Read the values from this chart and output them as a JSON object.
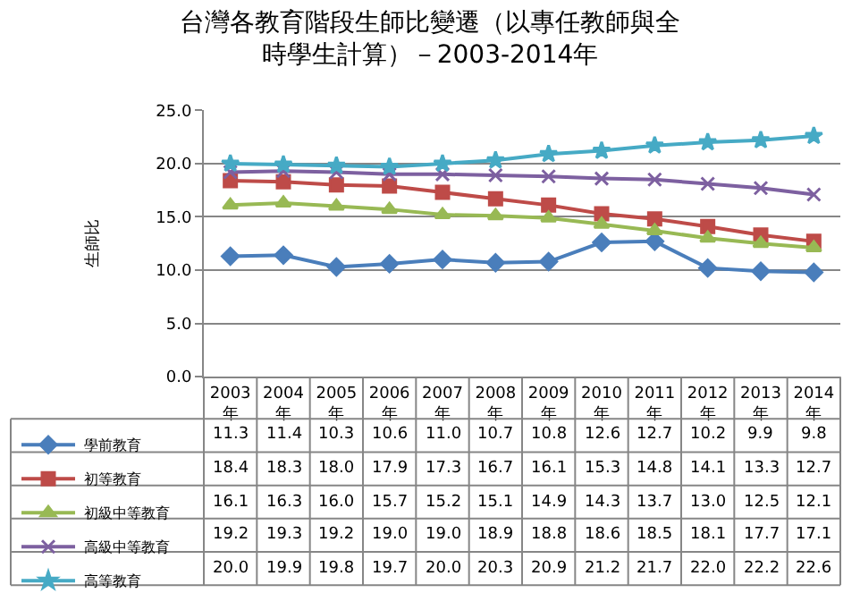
{
  "chart_data": {
    "type": "line",
    "title": "台灣各教育階段生師比變遷（以專任教師與全$_{}$時學生計算）－2003-2014年",
    "ylabel": "生師比",
    "categories": [
      "2003年",
      "2004年",
      "2005年",
      "2006年",
      "2007年",
      "2008年",
      "2009年",
      "2010年",
      "2011年",
      "2012年",
      "2013年",
      "2014年"
    ],
    "series": [
      {
        "name": "學前教育",
        "color": "#4a7ebb",
        "marker": "diamond",
        "values": [
          11.3,
          11.4,
          10.3,
          10.6,
          11.0,
          10.7,
          10.8,
          12.6,
          12.7,
          10.2,
          9.9,
          9.8
        ],
        "value_labels": [
          "11.3",
          "11.4",
          "10.3",
          "10.6",
          "11.0",
          "10.7",
          "10.8",
          "12.6",
          "12.7",
          "10.2",
          "9.9",
          "9.8"
        ]
      },
      {
        "name": "初等教育",
        "color": "#be4b48",
        "marker": "square",
        "values": [
          18.4,
          18.3,
          18.0,
          17.9,
          17.3,
          16.7,
          16.1,
          15.3,
          14.8,
          14.1,
          13.3,
          12.7
        ],
        "value_labels": [
          "18.4",
          "18.3",
          "18.0",
          "17.9",
          "17.3",
          "16.7",
          "16.1",
          "15.3",
          "14.8",
          "14.1",
          "13.3",
          "12.7"
        ]
      },
      {
        "name": "初級中等教育",
        "color": "#98b954",
        "marker": "triangle",
        "values": [
          16.1,
          16.3,
          16.0,
          15.7,
          15.2,
          15.1,
          14.9,
          14.3,
          13.7,
          13.0,
          12.5,
          12.1
        ],
        "value_labels": [
          "16.1",
          "16.3",
          "16.0",
          "15.7",
          "15.2",
          "15.1",
          "14.9",
          "14.3",
          "13.7",
          "13.0",
          "12.5",
          "12.1"
        ]
      },
      {
        "name": "高級中等教育",
        "color": "#7d60a0",
        "marker": "cross",
        "values": [
          19.2,
          19.3,
          19.2,
          19.0,
          19.0,
          18.9,
          18.8,
          18.6,
          18.5,
          18.1,
          17.7,
          17.1
        ],
        "value_labels": [
          "19.2",
          "19.3",
          "19.2",
          "19.0",
          "19.0",
          "18.9",
          "18.8",
          "18.6",
          "18.5",
          "18.1",
          "17.7",
          "17.1"
        ]
      },
      {
        "name": "高等教育",
        "color": "#46aac5",
        "marker": "star",
        "values": [
          20.0,
          19.9,
          19.8,
          19.7,
          20.0,
          20.3,
          20.9,
          21.2,
          21.7,
          22.0,
          22.2,
          22.6
        ],
        "value_labels": [
          "20.0",
          "19.9",
          "19.8",
          "19.7",
          "20.0",
          "20.3",
          "20.9",
          "21.2",
          "21.7",
          "22.0",
          "22.2",
          "22.6"
        ]
      }
    ],
    "ylim": [
      0,
      25
    ],
    "yticks": [
      {
        "value": 0,
        "label": "0.0"
      },
      {
        "value": 5,
        "label": "5.0"
      },
      {
        "value": 10,
        "label": "10.0"
      },
      {
        "value": 15,
        "label": "15.0"
      },
      {
        "value": 20,
        "label": "20.0"
      },
      {
        "value": 25,
        "label": "25.0"
      }
    ],
    "grid": "y",
    "legend": "bottom left",
    "line_style": "solid"
  }
}
